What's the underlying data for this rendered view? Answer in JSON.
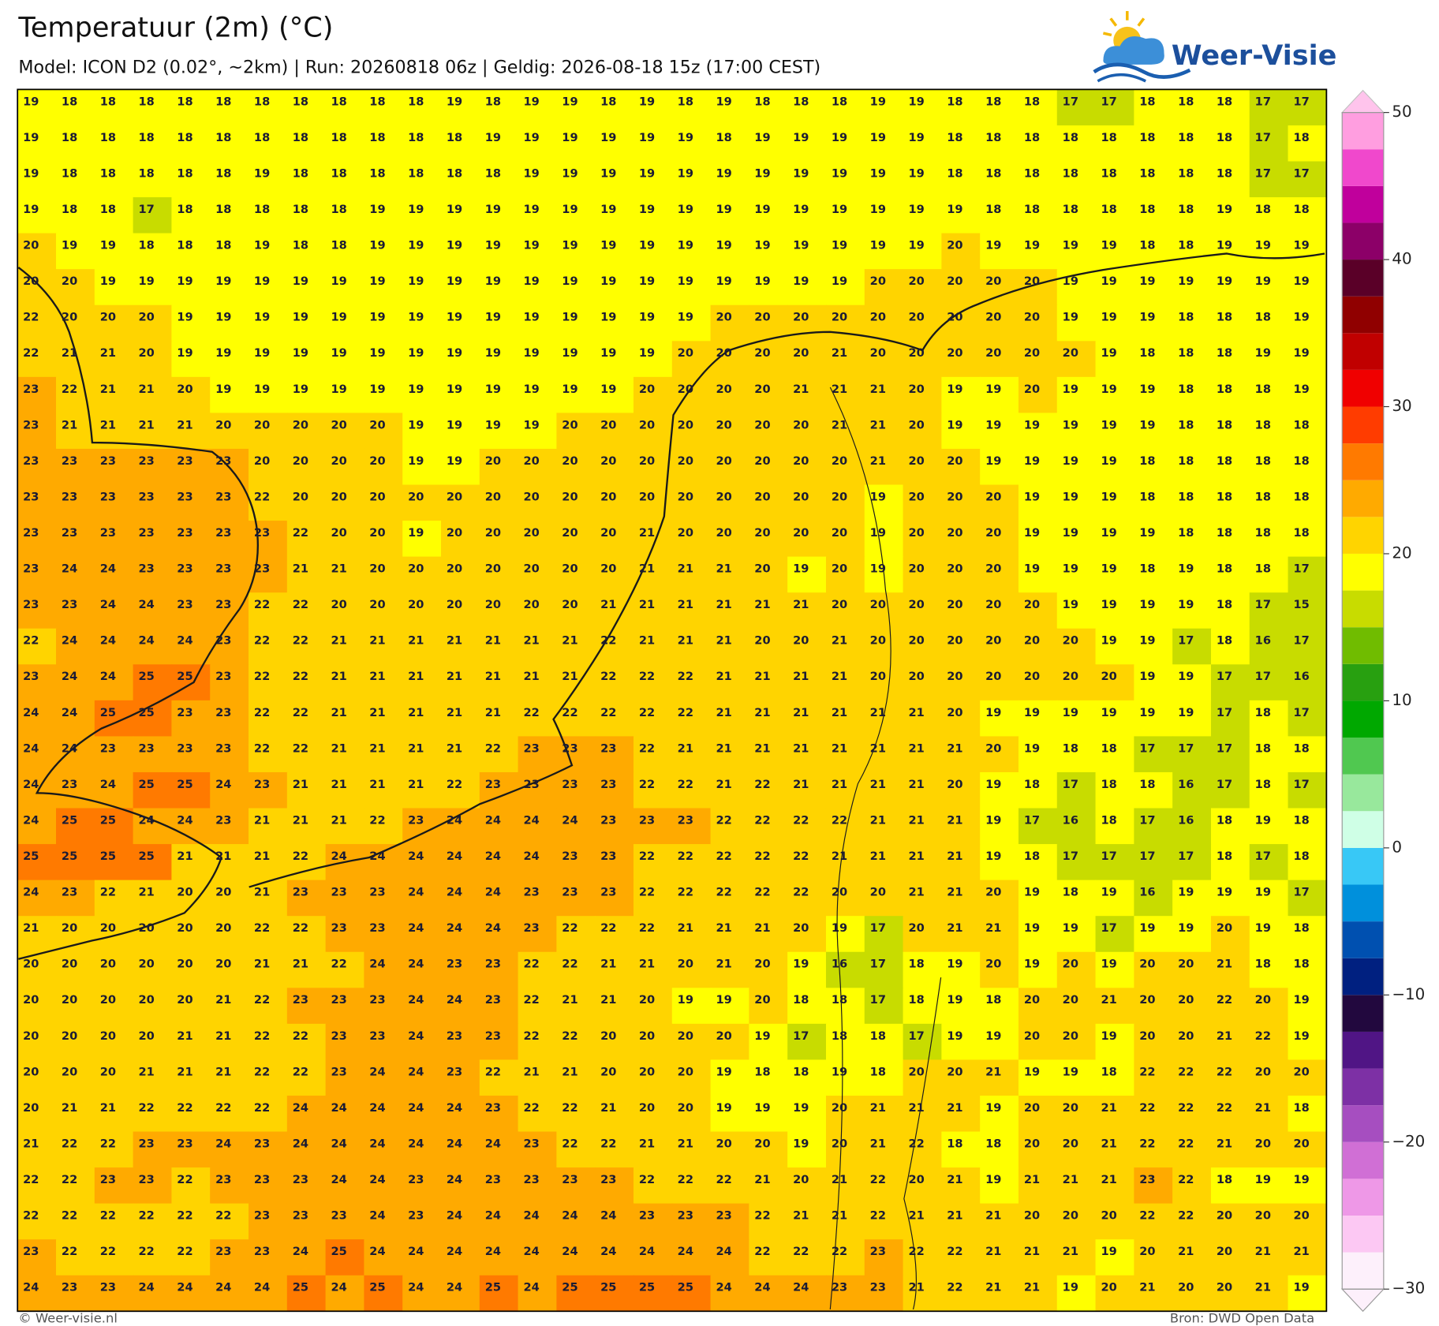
{
  "header": {
    "title": "Temperatuur (2m) (°C)",
    "subtitle": "Model: ICON D2 (0.02°, ~2km)  |  Run: 20260818 06z  |  Geldig: 2026-08-18 15z (17:00 CEST)"
  },
  "logo": {
    "text": "Weer-Visie"
  },
  "map": {
    "grid": [
      [
        19,
        18,
        18,
        18,
        18,
        18,
        18,
        18,
        18,
        18,
        18,
        19,
        18,
        19,
        19,
        18,
        19,
        18,
        19,
        18,
        18,
        18,
        19,
        19,
        18,
        18,
        18,
        17,
        17,
        18,
        18,
        18,
        17,
        17
      ],
      [
        19,
        18,
        18,
        18,
        18,
        18,
        18,
        18,
        18,
        18,
        18,
        18,
        19,
        19,
        19,
        19,
        19,
        19,
        18,
        19,
        19,
        19,
        19,
        19,
        18,
        18,
        18,
        18,
        18,
        18,
        18,
        18,
        17,
        18
      ],
      [
        19,
        18,
        18,
        18,
        18,
        18,
        19,
        18,
        18,
        18,
        18,
        18,
        18,
        19,
        19,
        19,
        19,
        19,
        19,
        19,
        19,
        19,
        19,
        19,
        18,
        18,
        18,
        18,
        18,
        18,
        18,
        18,
        17,
        17
      ],
      [
        19,
        18,
        18,
        17,
        18,
        18,
        18,
        18,
        18,
        19,
        19,
        19,
        19,
        19,
        19,
        19,
        19,
        19,
        19,
        19,
        19,
        19,
        19,
        19,
        19,
        18,
        18,
        18,
        18,
        18,
        18,
        19,
        18,
        18
      ],
      [
        20,
        19,
        19,
        18,
        18,
        18,
        19,
        18,
        18,
        19,
        19,
        19,
        19,
        19,
        19,
        19,
        19,
        19,
        19,
        19,
        19,
        19,
        19,
        19,
        20,
        19,
        19,
        19,
        19,
        18,
        18,
        19,
        19,
        19
      ],
      [
        20,
        20,
        19,
        19,
        19,
        19,
        19,
        19,
        19,
        19,
        19,
        19,
        19,
        19,
        19,
        19,
        19,
        19,
        19,
        19,
        19,
        19,
        20,
        20,
        20,
        20,
        20,
        19,
        19,
        19,
        19,
        19,
        19,
        19
      ],
      [
        22,
        20,
        20,
        20,
        19,
        19,
        19,
        19,
        19,
        19,
        19,
        19,
        19,
        19,
        19,
        19,
        19,
        19,
        20,
        20,
        20,
        20,
        20,
        20,
        20,
        20,
        20,
        19,
        19,
        19,
        18,
        18,
        18,
        19
      ],
      [
        22,
        21,
        21,
        20,
        19,
        19,
        19,
        19,
        19,
        19,
        19,
        19,
        19,
        19,
        19,
        19,
        19,
        20,
        20,
        20,
        20,
        21,
        20,
        20,
        20,
        20,
        20,
        20,
        19,
        18,
        18,
        18,
        19,
        19
      ],
      [
        23,
        22,
        21,
        21,
        20,
        19,
        19,
        19,
        19,
        19,
        19,
        19,
        19,
        19,
        19,
        19,
        20,
        20,
        20,
        20,
        21,
        21,
        21,
        20,
        19,
        19,
        20,
        19,
        19,
        19,
        18,
        18,
        18,
        19
      ],
      [
        23,
        21,
        21,
        21,
        21,
        20,
        20,
        20,
        20,
        20,
        19,
        19,
        19,
        19,
        20,
        20,
        20,
        20,
        20,
        20,
        20,
        21,
        21,
        20,
        19,
        19,
        19,
        19,
        19,
        19,
        18,
        18,
        18,
        18
      ],
      [
        23,
        23,
        23,
        23,
        23,
        23,
        20,
        20,
        20,
        20,
        19,
        19,
        20,
        20,
        20,
        20,
        20,
        20,
        20,
        20,
        20,
        20,
        21,
        20,
        20,
        19,
        19,
        19,
        19,
        18,
        18,
        18,
        18,
        18
      ],
      [
        23,
        23,
        23,
        23,
        23,
        23,
        22,
        20,
        20,
        20,
        20,
        20,
        20,
        20,
        20,
        20,
        20,
        20,
        20,
        20,
        20,
        20,
        19,
        20,
        20,
        20,
        19,
        19,
        19,
        18,
        18,
        18,
        18,
        18
      ],
      [
        23,
        23,
        23,
        23,
        23,
        23,
        23,
        22,
        20,
        20,
        19,
        20,
        20,
        20,
        20,
        20,
        21,
        20,
        20,
        20,
        20,
        20,
        19,
        20,
        20,
        20,
        19,
        19,
        19,
        19,
        18,
        18,
        18,
        18
      ],
      [
        23,
        24,
        24,
        23,
        23,
        23,
        23,
        21,
        21,
        20,
        20,
        20,
        20,
        20,
        20,
        20,
        21,
        21,
        21,
        20,
        19,
        20,
        19,
        20,
        20,
        20,
        19,
        19,
        19,
        18,
        19,
        18,
        18,
        17
      ],
      [
        23,
        23,
        24,
        24,
        23,
        23,
        22,
        22,
        20,
        20,
        20,
        20,
        20,
        20,
        20,
        21,
        21,
        21,
        21,
        21,
        21,
        20,
        20,
        20,
        20,
        20,
        20,
        19,
        19,
        19,
        19,
        18,
        17,
        15
      ],
      [
        22,
        24,
        24,
        24,
        24,
        23,
        22,
        22,
        21,
        21,
        21,
        21,
        21,
        21,
        21,
        22,
        21,
        21,
        21,
        20,
        20,
        21,
        20,
        20,
        20,
        20,
        20,
        20,
        19,
        19,
        17,
        18,
        16,
        17
      ],
      [
        23,
        24,
        24,
        25,
        25,
        23,
        22,
        22,
        21,
        21,
        21,
        21,
        21,
        21,
        21,
        22,
        22,
        22,
        21,
        21,
        21,
        21,
        20,
        20,
        20,
        20,
        20,
        20,
        20,
        19,
        19,
        17,
        17,
        16
      ],
      [
        24,
        24,
        25,
        25,
        23,
        23,
        22,
        22,
        21,
        21,
        21,
        21,
        21,
        22,
        22,
        22,
        22,
        22,
        21,
        21,
        21,
        21,
        21,
        21,
        20,
        19,
        19,
        19,
        19,
        19,
        19,
        17,
        18,
        17
      ],
      [
        24,
        24,
        23,
        23,
        23,
        23,
        22,
        22,
        21,
        21,
        21,
        21,
        22,
        23,
        23,
        23,
        22,
        21,
        21,
        21,
        21,
        21,
        21,
        21,
        21,
        20,
        19,
        18,
        18,
        17,
        17,
        17,
        18,
        18
      ],
      [
        24,
        23,
        24,
        25,
        25,
        24,
        23,
        21,
        21,
        21,
        21,
        22,
        23,
        23,
        23,
        23,
        22,
        22,
        21,
        22,
        21,
        21,
        21,
        21,
        20,
        19,
        18,
        17,
        18,
        18,
        16,
        17,
        18,
        17
      ],
      [
        24,
        25,
        25,
        24,
        24,
        23,
        21,
        21,
        21,
        22,
        23,
        24,
        24,
        24,
        24,
        23,
        23,
        23,
        22,
        22,
        22,
        22,
        21,
        21,
        21,
        19,
        17,
        16,
        18,
        17,
        16,
        18,
        19,
        18
      ],
      [
        25,
        25,
        25,
        25,
        21,
        21,
        21,
        22,
        24,
        24,
        24,
        24,
        24,
        24,
        23,
        23,
        22,
        22,
        22,
        22,
        22,
        21,
        21,
        21,
        21,
        19,
        18,
        17,
        17,
        17,
        17,
        18,
        17,
        18
      ],
      [
        24,
        23,
        22,
        21,
        20,
        20,
        21,
        23,
        23,
        23,
        24,
        24,
        24,
        23,
        23,
        23,
        22,
        22,
        22,
        22,
        22,
        20,
        20,
        21,
        21,
        20,
        19,
        18,
        19,
        16,
        19,
        19,
        19,
        17
      ],
      [
        21,
        20,
        20,
        20,
        20,
        20,
        22,
        22,
        23,
        23,
        24,
        24,
        24,
        23,
        22,
        22,
        22,
        21,
        21,
        21,
        20,
        19,
        17,
        20,
        21,
        21,
        19,
        19,
        17,
        19,
        19,
        20,
        19,
        18
      ],
      [
        20,
        20,
        20,
        20,
        20,
        20,
        21,
        21,
        22,
        24,
        24,
        23,
        23,
        22,
        22,
        21,
        21,
        20,
        21,
        20,
        19,
        16,
        17,
        18,
        19,
        20,
        19,
        20,
        19,
        20,
        20,
        21,
        18,
        18
      ],
      [
        20,
        20,
        20,
        20,
        20,
        21,
        22,
        23,
        23,
        23,
        24,
        24,
        23,
        22,
        21,
        21,
        20,
        19,
        19,
        20,
        18,
        18,
        17,
        18,
        19,
        18,
        20,
        20,
        21,
        20,
        20,
        22,
        20,
        19
      ],
      [
        20,
        20,
        20,
        20,
        21,
        21,
        22,
        22,
        23,
        23,
        24,
        23,
        23,
        22,
        22,
        20,
        20,
        20,
        20,
        19,
        17,
        18,
        18,
        17,
        19,
        19,
        20,
        20,
        19,
        20,
        20,
        21,
        22,
        19
      ],
      [
        20,
        20,
        20,
        21,
        21,
        21,
        22,
        22,
        23,
        24,
        24,
        23,
        22,
        21,
        21,
        20,
        20,
        20,
        19,
        18,
        18,
        19,
        18,
        20,
        20,
        21,
        19,
        19,
        18,
        22,
        22,
        22,
        20,
        20
      ],
      [
        20,
        21,
        21,
        22,
        22,
        22,
        22,
        24,
        24,
        24,
        24,
        24,
        23,
        22,
        22,
        21,
        20,
        20,
        19,
        19,
        19,
        20,
        21,
        21,
        21,
        19,
        20,
        20,
        21,
        22,
        22,
        22,
        21,
        18
      ],
      [
        21,
        22,
        22,
        23,
        23,
        24,
        23,
        24,
        24,
        24,
        24,
        24,
        24,
        23,
        22,
        22,
        21,
        21,
        20,
        20,
        19,
        20,
        21,
        22,
        18,
        18,
        20,
        20,
        21,
        22,
        22,
        21,
        20,
        20
      ],
      [
        22,
        22,
        23,
        23,
        22,
        23,
        23,
        23,
        24,
        24,
        23,
        24,
        23,
        23,
        23,
        23,
        22,
        22,
        22,
        21,
        20,
        21,
        22,
        20,
        21,
        19,
        21,
        21,
        21,
        23,
        22,
        18,
        19,
        19
      ],
      [
        22,
        22,
        22,
        22,
        22,
        22,
        23,
        23,
        23,
        24,
        23,
        24,
        24,
        24,
        24,
        24,
        23,
        23,
        23,
        22,
        21,
        21,
        22,
        21,
        21,
        21,
        20,
        20,
        20,
        22,
        22,
        20,
        20,
        20
      ],
      [
        23,
        22,
        22,
        22,
        22,
        23,
        23,
        24,
        25,
        24,
        24,
        24,
        24,
        24,
        24,
        24,
        24,
        24,
        24,
        22,
        22,
        22,
        23,
        22,
        22,
        21,
        21,
        21,
        19,
        20,
        21,
        20,
        21,
        21
      ],
      [
        24,
        23,
        23,
        24,
        24,
        24,
        24,
        25,
        24,
        25,
        24,
        24,
        25,
        24,
        25,
        25,
        25,
        25,
        24,
        24,
        24,
        23,
        23,
        21,
        22,
        21,
        21,
        19,
        20,
        21,
        20,
        20,
        21,
        19
      ]
    ]
  },
  "colorbar": {
    "lim": [
      -30,
      50
    ],
    "ticks": [
      {
        "value": -30,
        "label": "−30"
      },
      {
        "value": -20,
        "label": "−20"
      },
      {
        "value": -10,
        "label": "−10"
      },
      0,
      10,
      20,
      30,
      40,
      50
    ],
    "colors": [
      "#fdf0fb",
      "#fcc8f3",
      "#ee98e7",
      "#d06fd5",
      "#a64ec0",
      "#7d30a5",
      "#501585",
      "#22083e",
      "#002080",
      "#0050b0",
      "#0090dc",
      "#38c8f6",
      "#cfffe6",
      "#98e89c",
      "#50c850",
      "#00a800",
      "#28a010",
      "#70bc00",
      "#c8dc00",
      "#ffff00",
      "#ffd400",
      "#ffaa00",
      "#ff7a00",
      "#ff3c00",
      "#f00000",
      "#c00000",
      "#900000",
      "#5a0028",
      "#8c0068",
      "#c0009c",
      "#f048cc",
      "#ff9ee0"
    ]
  },
  "footer": {
    "left": "© Weer-visie.nl",
    "right": "Bron: DWD Open Data"
  }
}
